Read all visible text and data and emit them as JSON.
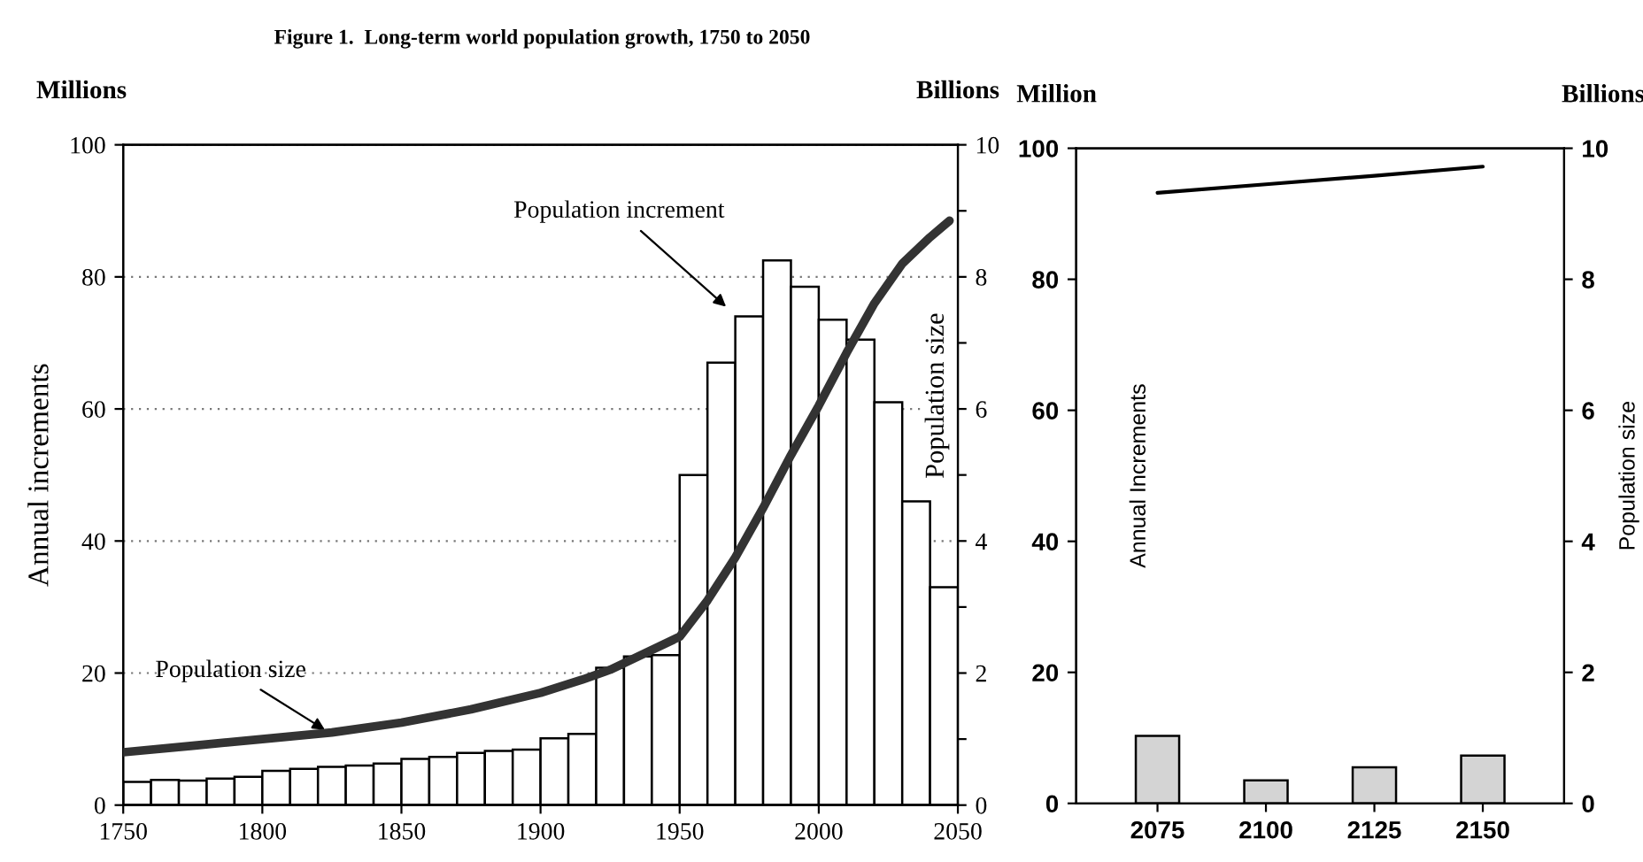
{
  "chart_data": [
    {
      "type": "histogram",
      "title": "Figure 1.  Long-term world population growth, 1750 to 2050",
      "ylabel": "Annual increments",
      "y2label": "Population size",
      "bins": [
        1750,
        1760,
        1770,
        1780,
        1790,
        1800,
        1810,
        1820,
        1830,
        1840,
        1850,
        1860,
        1870,
        1880,
        1890,
        1900,
        1910,
        1920,
        1930,
        1940,
        1950,
        1960,
        1970,
        1980,
        1990,
        2000,
        2010,
        2020,
        2030,
        2040,
        2050
      ],
      "values": [
        3.5,
        3.8,
        3.7,
        4.0,
        4.3,
        5.2,
        5.5,
        5.8,
        6.0,
        6.3,
        7.0,
        7.3,
        7.9,
        8.2,
        8.4,
        10.1,
        10.8,
        20.8,
        22.5,
        22.7,
        50,
        67,
        74,
        82.5,
        78.5,
        73.5,
        70.5,
        61,
        46,
        33
      ],
      "color": "#ffffff",
      "series": [
        {
          "type": "line",
          "axis": "y2",
          "color": "#333333",
          "x": [
            1750,
            1775,
            1800,
            1825,
            1850,
            1875,
            1900,
            1915,
            1925,
            1935,
            1950,
            1960,
            1970,
            1980,
            1990,
            2000,
            2010,
            2020,
            2030,
            2040,
            2047
          ],
          "values": [
            0.8,
            0.9,
            1.0,
            1.1,
            1.25,
            1.45,
            1.7,
            1.9,
            2.05,
            2.25,
            2.55,
            3.1,
            3.75,
            4.5,
            5.3,
            6.05,
            6.85,
            7.6,
            8.2,
            8.6,
            8.85
          ]
        }
      ],
      "xlim": [
        1750,
        2050
      ],
      "xticks": [
        1750,
        1800,
        1850,
        1900,
        1950,
        2000,
        2050
      ],
      "ylim": [
        0,
        100
      ],
      "yticks": [
        0,
        20,
        40,
        60,
        80,
        100
      ],
      "y2lim": [
        0,
        10
      ],
      "y2ticks": [
        0,
        {
          "value": 1,
          "label": null
        },
        2,
        {
          "value": 3,
          "label": null
        },
        4,
        {
          "value": 5,
          "label": null
        },
        6,
        {
          "value": 7,
          "label": null
        },
        8,
        {
          "value": 9,
          "label": null
        },
        10
      ],
      "grid": "y",
      "annotations": [
        "Millions",
        "Billions",
        {
          "text": "Population increment",
          "x": 1968,
          "y": 75
        },
        {
          "text": "Population size",
          "x": 1824,
          "y": 11
        }
      ]
    },
    {
      "type": "bar",
      "ylabel": "Annual Increments",
      "y2label": "Population size",
      "categories": [
        "2075",
        "2100",
        "2125",
        "2150"
      ],
      "values": [
        10.3,
        3.5,
        5.5,
        7.3
      ],
      "color": "#d4d4d4",
      "series": [
        {
          "type": "line",
          "axis": "y2",
          "color": "#000000",
          "values": [
            9.32,
            9.45,
            9.58,
            9.72
          ]
        }
      ],
      "ylim": [
        0,
        100
      ],
      "yticks": [
        0,
        20,
        40,
        60,
        80,
        100
      ],
      "y2lim": [
        0,
        10
      ],
      "y2ticks": [
        0,
        2,
        4,
        6,
        8,
        10
      ],
      "annotations": [
        "Million",
        "Billions"
      ]
    }
  ]
}
